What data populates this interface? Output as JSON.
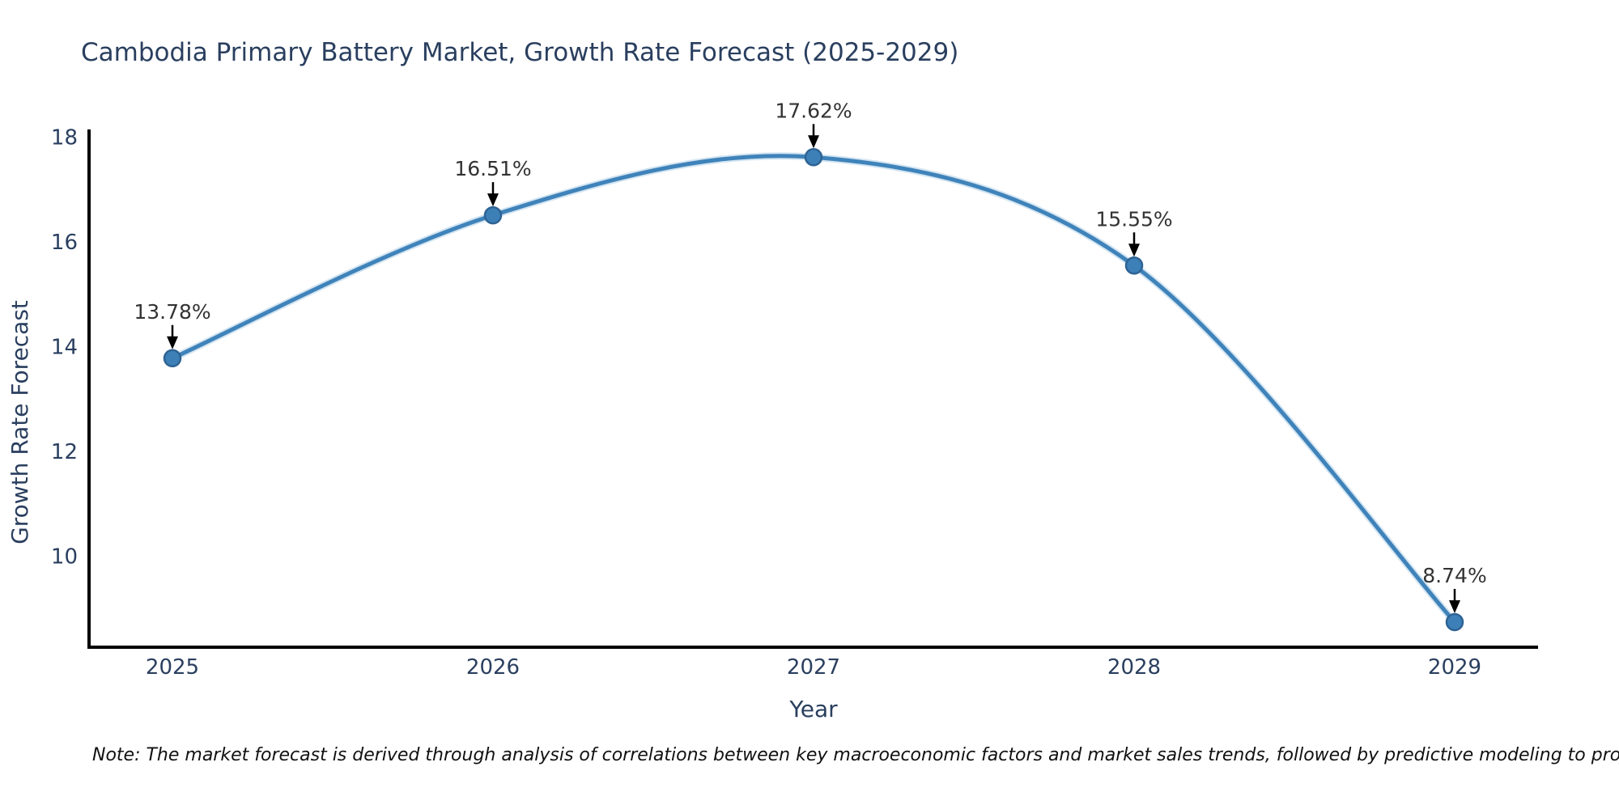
{
  "title": "Cambodia Primary Battery Market, Growth Rate Forecast (2025-2029)",
  "note": "Note: The market forecast is derived through analysis of correlations between key macroeconomic factors and market sales trends, followed by predictive modeling to project future sales.",
  "chart_data": {
    "type": "line",
    "title": "Cambodia Primary Battery Market, Growth Rate Forecast (2025-2029)",
    "xlabel": "Year",
    "ylabel": "Growth Rate Forecast",
    "categories": [
      "2025",
      "2026",
      "2027",
      "2028",
      "2029"
    ],
    "values": [
      13.78,
      16.51,
      17.62,
      15.55,
      8.74
    ],
    "point_labels": [
      "13.78%",
      "16.51%",
      "17.62%",
      "15.55%",
      "8.74%"
    ],
    "ylim": [
      8.26,
      18.15
    ],
    "yticks": [
      10,
      12,
      14,
      16,
      18
    ],
    "grid": false,
    "legend": "none",
    "line_shape": "spline",
    "annotation_style": "value-label-with-down-arrow",
    "colors": {
      "line": "#3f83ba",
      "line_halo": "#9ec6e3",
      "marker_fill": "#3d80b8",
      "marker_edge": "#2e6394",
      "axis_line": "#000000",
      "title_text": "#2a3f5f",
      "axis_text": "#2a3f5f",
      "annotation_text": "#333333",
      "arrow": "#000000",
      "note_text": "#111111"
    }
  }
}
